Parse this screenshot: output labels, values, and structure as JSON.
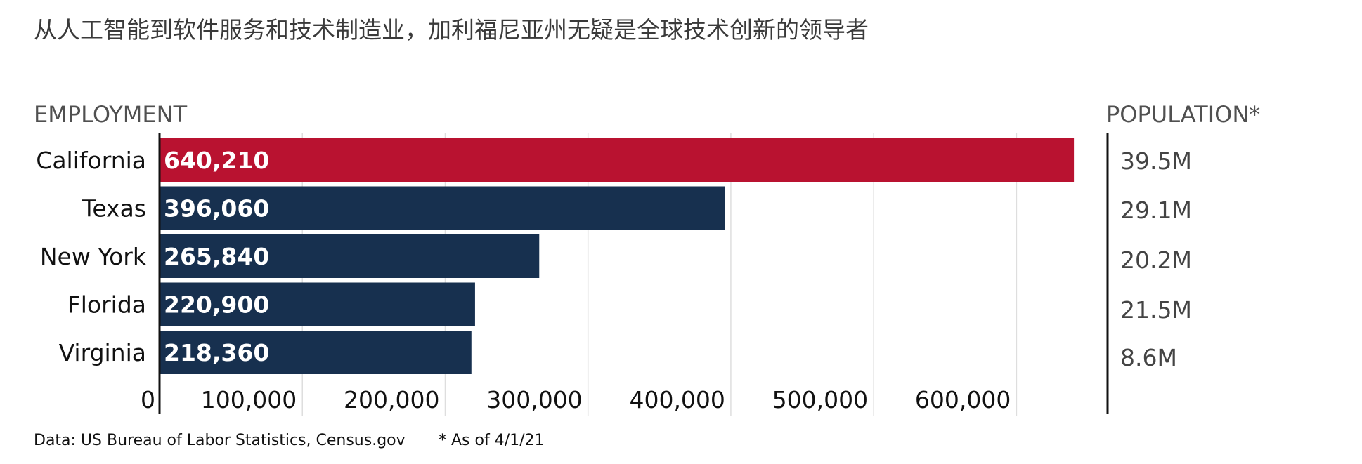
{
  "title": "从人工智能到软件服务和技术制造业，加利福尼亚州无疑是全球技术创新的领导者",
  "chart_data": {
    "type": "bar",
    "orientation": "horizontal",
    "section_label": "EMPLOYMENT",
    "categories": [
      "California",
      "Texas",
      "New York",
      "Florida",
      "Virginia"
    ],
    "values": [
      640210,
      396060,
      265840,
      220900,
      218360
    ],
    "value_labels": [
      "640,210",
      "396,060",
      "265,840",
      "220,900",
      "218,360"
    ],
    "xlim": [
      0,
      650000
    ],
    "x_ticks": [
      0,
      100000,
      200000,
      300000,
      400000,
      500000,
      600000
    ],
    "x_tick_labels": [
      "0",
      "100,000",
      "200,000",
      "300,000",
      "400,000",
      "500,000",
      "600,000"
    ],
    "grid": true,
    "colors": {
      "highlight": "#b91230",
      "default": "#17304f"
    },
    "highlight_category": "California",
    "population": {
      "label": "POPULATION*",
      "values": [
        "39.5M",
        "29.1M",
        "20.2M",
        "21.5M",
        "8.6M"
      ]
    }
  },
  "footer": {
    "source": "Data: US Bureau of Labor Statistics, Census.gov",
    "note": "* As of 4/1/21"
  }
}
